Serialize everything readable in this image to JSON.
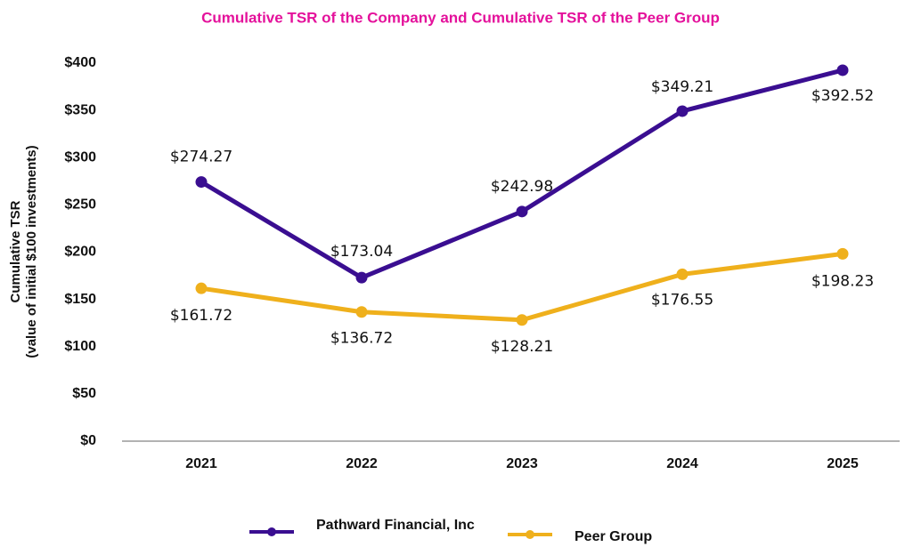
{
  "chart_data": {
    "type": "line",
    "title": "Cumulative TSR of the Company and Cumulative TSR of the Peer Group",
    "y_label_lines": [
      "Cumulative TSR",
      "(value of initial $100 investments)"
    ],
    "categories": [
      "2021",
      "2022",
      "2023",
      "2024",
      "2025"
    ],
    "series": [
      {
        "name": "Pathward Financial, Inc",
        "color": "#3a0e91",
        "values": [
          274.27,
          173.04,
          242.98,
          349.21,
          392.52
        ],
        "value_labels": [
          "$274.27",
          "$173.04",
          "$242.98",
          "$349.21",
          "$392.52"
        ]
      },
      {
        "name": "Peer Group",
        "color": "#efb01c",
        "values": [
          161.72,
          136.72,
          128.21,
          176.55,
          198.23
        ],
        "value_labels": [
          "$161.72",
          "$136.72",
          "$128.21",
          "$176.55",
          "$198.23"
        ]
      }
    ],
    "ylim": [
      0,
      400
    ],
    "yticks": [
      {
        "value": 0,
        "label": "$0"
      },
      {
        "value": 50,
        "label": "$50"
      },
      {
        "value": 100,
        "label": "$100"
      },
      {
        "value": 150,
        "label": "$150"
      },
      {
        "value": 200,
        "label": "$200"
      },
      {
        "value": 250,
        "label": "$250"
      },
      {
        "value": 300,
        "label": "$300"
      },
      {
        "value": 350,
        "label": "$350"
      },
      {
        "value": 400,
        "label": "$400"
      }
    ],
    "grid": false,
    "legend": "bottom"
  }
}
